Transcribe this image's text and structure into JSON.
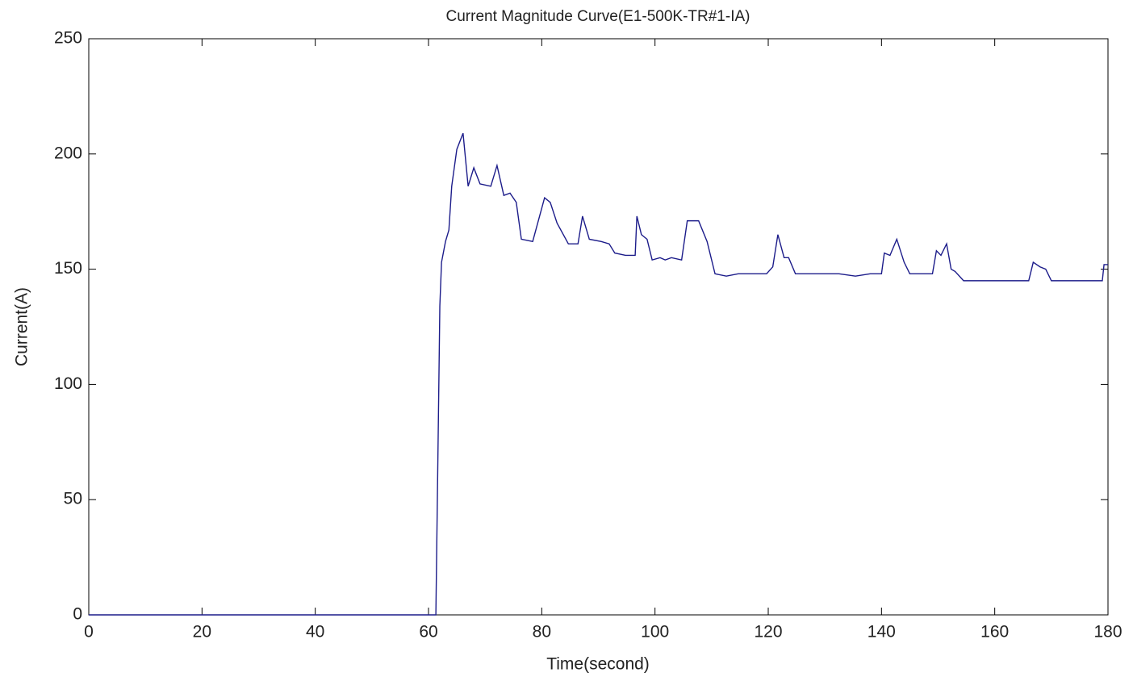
{
  "chart_data": {
    "type": "line",
    "title": "Current Magnitude Curve(E1-500K-TR#1-IA)",
    "x_label": "Time(second)",
    "y_label": "Current(A)",
    "xlim": [
      0,
      180
    ],
    "xticks": [
      0,
      20,
      40,
      60,
      80,
      100,
      120,
      140,
      160,
      180
    ],
    "ylim": [
      0,
      250
    ],
    "yticks": [
      0,
      50,
      100,
      150,
      200,
      250
    ],
    "grid": false,
    "series": [
      {
        "name": "IA",
        "color": "#1c1c8a",
        "x": [
          0,
          61.3,
          61.6,
          61.8,
          62.0,
          62.3,
          63.0,
          63.6,
          64.1,
          65.0,
          66.1,
          67.0,
          68.0,
          69.1,
          71.0,
          72.1,
          73.3,
          74.4,
          75.5,
          76.4,
          78.4,
          80.5,
          81.5,
          82.7,
          84.7,
          86.4,
          87.2,
          88.4,
          90.5,
          91.9,
          92.9,
          94.8,
          96.5,
          96.8,
          97.6,
          98.6,
          99.5,
          100.9,
          101.8,
          102.9,
          104.7,
          105.7,
          107.7,
          109.2,
          110.6,
          112.6,
          114.7,
          119.7,
          120.8,
          121.7,
          122.8,
          123.6,
          124.8,
          126.8,
          129.7,
          132.5,
          135.4,
          138,
          140,
          140.5,
          141.5,
          142.7,
          144,
          145,
          149,
          149.7,
          150.5,
          151.5,
          152.3,
          153,
          154.5,
          166,
          166.8,
          168,
          169,
          170,
          179,
          179.3,
          180
        ],
        "values": [
          0,
          0,
          57,
          95,
          134,
          153,
          162,
          167,
          186,
          202,
          209,
          186,
          194,
          187,
          186,
          195,
          182,
          183,
          179,
          163,
          162,
          181,
          179,
          170,
          161,
          161,
          173,
          163,
          162,
          161,
          157,
          156,
          156,
          173,
          165,
          163,
          154,
          155,
          154,
          155,
          154,
          171,
          171,
          162,
          148,
          147,
          148,
          148,
          151,
          165,
          155,
          155,
          148,
          148,
          148,
          148,
          147,
          148,
          148,
          157,
          156,
          163,
          153,
          148,
          148,
          158,
          156,
          161,
          150,
          149,
          145,
          145,
          153,
          151,
          150,
          145,
          145,
          152,
          152
        ]
      }
    ]
  }
}
